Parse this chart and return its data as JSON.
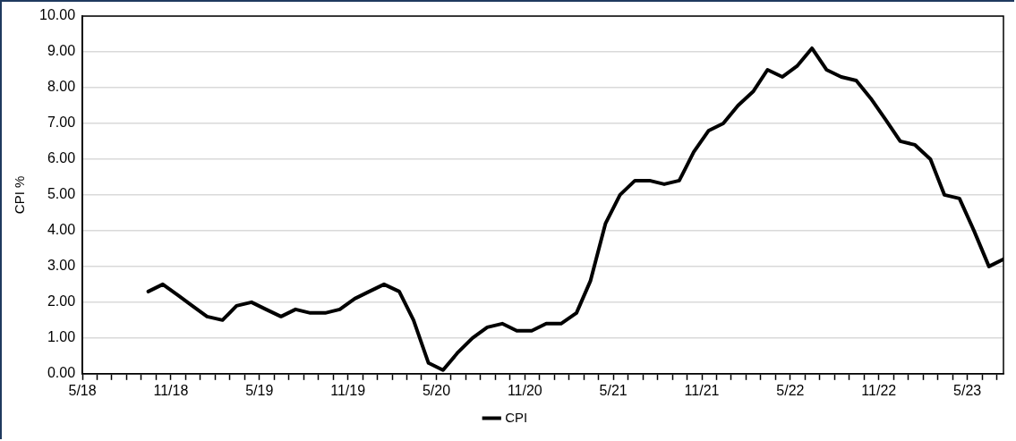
{
  "chart_data": {
    "type": "line",
    "ylabel": "CPI %",
    "legend": "bottom",
    "grid": "y",
    "marker": "none",
    "line_style": "solid",
    "x": [
      "2018-09-15",
      "2018-10-15",
      "2018-11-15",
      "2018-12-15",
      "2019-01-15",
      "2019-02-15",
      "2019-03-15",
      "2019-04-15",
      "2019-05-15",
      "2019-06-15",
      "2019-07-15",
      "2019-08-15",
      "2019-09-15",
      "2019-10-15",
      "2019-11-15",
      "2019-12-15",
      "2020-01-15",
      "2020-02-15",
      "2020-03-15",
      "2020-04-15",
      "2020-05-15",
      "2020-06-15",
      "2020-07-15",
      "2020-08-15",
      "2020-09-15",
      "2020-10-15",
      "2020-11-15",
      "2020-12-15",
      "2021-01-15",
      "2021-02-15",
      "2021-03-15",
      "2021-04-15",
      "2021-05-15",
      "2021-06-15",
      "2021-07-15",
      "2021-08-15",
      "2021-09-15",
      "2021-10-15",
      "2021-11-15",
      "2021-12-15",
      "2022-01-15",
      "2022-02-15",
      "2022-03-15",
      "2022-04-15",
      "2022-05-15",
      "2022-06-15",
      "2022-07-15",
      "2022-08-15",
      "2022-09-15",
      "2022-10-15",
      "2022-11-15",
      "2022-12-15",
      "2023-01-15",
      "2023-02-15",
      "2023-03-15",
      "2023-04-15",
      "2023-05-15",
      "2023-06-15",
      "2023-07-15"
    ],
    "series": [
      {
        "name": "CPI",
        "color": "#000000",
        "values": [
          2.3,
          2.5,
          2.2,
          1.9,
          1.6,
          1.5,
          1.9,
          2.0,
          1.8,
          1.6,
          1.8,
          1.7,
          1.7,
          1.8,
          2.1,
          2.3,
          2.5,
          2.3,
          1.5,
          0.3,
          0.1,
          0.6,
          1.0,
          1.3,
          1.4,
          1.2,
          1.2,
          1.4,
          1.4,
          1.7,
          2.6,
          4.2,
          5.0,
          5.4,
          5.4,
          5.3,
          5.4,
          6.2,
          6.8,
          7.0,
          7.5,
          7.9,
          8.5,
          8.3,
          8.6,
          9.1,
          8.5,
          8.3,
          8.2,
          7.7,
          7.1,
          6.5,
          6.4,
          6.0,
          5.0,
          4.9,
          4.0,
          3.0,
          3.2
        ]
      }
    ],
    "xlim": [
      "2018-05",
      "2023-07-15"
    ],
    "xticks": [
      {
        "value": "2018-05",
        "label": "5/18"
      },
      {
        "value": "2018-06",
        "label": null
      },
      {
        "value": "2018-07",
        "label": null
      },
      {
        "value": "2018-08",
        "label": null
      },
      {
        "value": "2018-09",
        "label": null
      },
      {
        "value": "2018-10",
        "label": null
      },
      {
        "value": "2018-11",
        "label": "11/18"
      },
      {
        "value": "2018-12",
        "label": null
      },
      {
        "value": "2019-01",
        "label": null
      },
      {
        "value": "2019-02",
        "label": null
      },
      {
        "value": "2019-03",
        "label": null
      },
      {
        "value": "2019-04",
        "label": null
      },
      {
        "value": "2019-05",
        "label": "5/19"
      },
      {
        "value": "2019-06",
        "label": null
      },
      {
        "value": "2019-07",
        "label": null
      },
      {
        "value": "2019-08",
        "label": null
      },
      {
        "value": "2019-09",
        "label": null
      },
      {
        "value": "2019-10",
        "label": null
      },
      {
        "value": "2019-11",
        "label": "11/19"
      },
      {
        "value": "2019-12",
        "label": null
      },
      {
        "value": "2020-01",
        "label": null
      },
      {
        "value": "2020-02",
        "label": null
      },
      {
        "value": "2020-03",
        "label": null
      },
      {
        "value": "2020-04",
        "label": null
      },
      {
        "value": "2020-05",
        "label": "5/20"
      },
      {
        "value": "2020-06",
        "label": null
      },
      {
        "value": "2020-07",
        "label": null
      },
      {
        "value": "2020-08",
        "label": null
      },
      {
        "value": "2020-09",
        "label": null
      },
      {
        "value": "2020-10",
        "label": null
      },
      {
        "value": "2020-11",
        "label": "11/20"
      },
      {
        "value": "2020-12",
        "label": null
      },
      {
        "value": "2021-01",
        "label": null
      },
      {
        "value": "2021-02",
        "label": null
      },
      {
        "value": "2021-03",
        "label": null
      },
      {
        "value": "2021-04",
        "label": null
      },
      {
        "value": "2021-05",
        "label": "5/21"
      },
      {
        "value": "2021-06",
        "label": null
      },
      {
        "value": "2021-07",
        "label": null
      },
      {
        "value": "2021-08",
        "label": null
      },
      {
        "value": "2021-09",
        "label": null
      },
      {
        "value": "2021-10",
        "label": null
      },
      {
        "value": "2021-11",
        "label": "11/21"
      },
      {
        "value": "2021-12",
        "label": null
      },
      {
        "value": "2022-01",
        "label": null
      },
      {
        "value": "2022-02",
        "label": null
      },
      {
        "value": "2022-03",
        "label": null
      },
      {
        "value": "2022-04",
        "label": null
      },
      {
        "value": "2022-05",
        "label": "5/22"
      },
      {
        "value": "2022-06",
        "label": null
      },
      {
        "value": "2022-07",
        "label": null
      },
      {
        "value": "2022-08",
        "label": null
      },
      {
        "value": "2022-09",
        "label": null
      },
      {
        "value": "2022-10",
        "label": null
      },
      {
        "value": "2022-11",
        "label": "11/22"
      },
      {
        "value": "2022-12",
        "label": null
      },
      {
        "value": "2023-01",
        "label": null
      },
      {
        "value": "2023-02",
        "label": null
      },
      {
        "value": "2023-03",
        "label": null
      },
      {
        "value": "2023-04",
        "label": null
      },
      {
        "value": "2023-05",
        "label": "5/23"
      },
      {
        "value": "2023-06",
        "label": null
      },
      {
        "value": "2023-07",
        "label": null
      }
    ],
    "ylim": [
      0,
      10
    ],
    "yticks": [
      {
        "value": 0,
        "label": "0.00"
      },
      {
        "value": 1,
        "label": "1.00"
      },
      {
        "value": 2,
        "label": "2.00"
      },
      {
        "value": 3,
        "label": "3.00"
      },
      {
        "value": 4,
        "label": "4.00"
      },
      {
        "value": 5,
        "label": "5.00"
      },
      {
        "value": 6,
        "label": "6.00"
      },
      {
        "value": 7,
        "label": "7.00"
      },
      {
        "value": 8,
        "label": "8.00"
      },
      {
        "value": 9,
        "label": "9.00"
      },
      {
        "value": 10,
        "label": "10.00"
      }
    ]
  }
}
